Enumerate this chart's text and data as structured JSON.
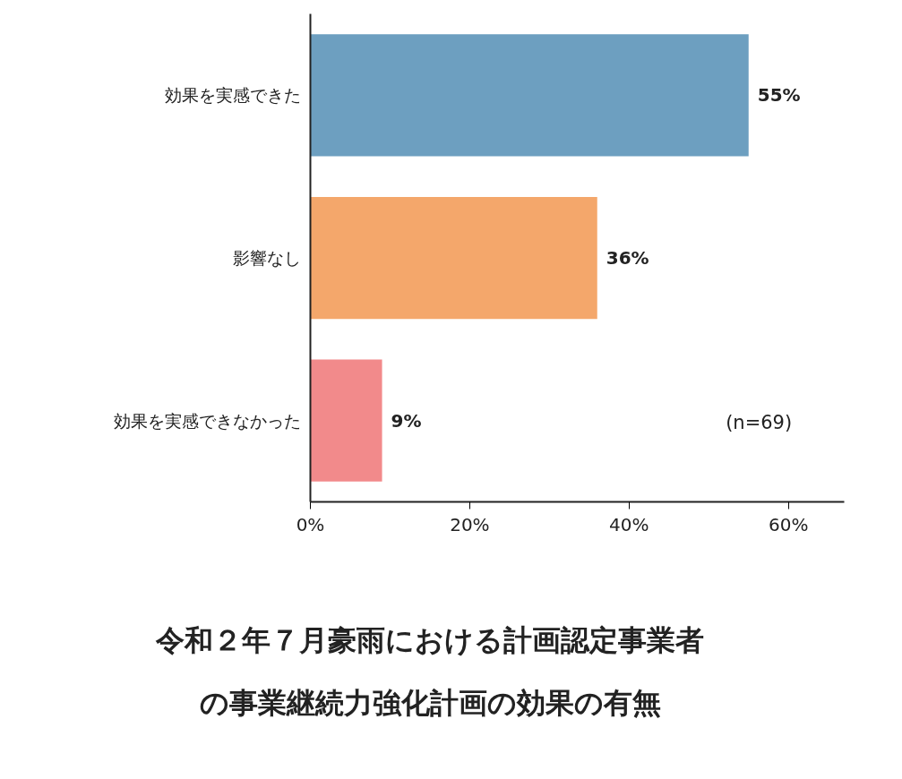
{
  "chart_data": {
    "type": "bar",
    "orientation": "horizontal",
    "title": "令和２年７月豪雨における計画認定事業者の事業継続力強化計画の効果の有無",
    "categories": [
      "効果を実感できた",
      "影響なし",
      "効果を実感できなかった"
    ],
    "values": [
      55,
      36,
      9
    ],
    "colors": [
      "#6d9fc0",
      "#f4a76b",
      "#f28a8b"
    ],
    "value_labels": [
      "55%",
      "36%",
      "9%"
    ],
    "xlim": [
      0,
      67
    ],
    "xticks": [
      {
        "value": 0,
        "label": "0%"
      },
      {
        "value": 20,
        "label": "20%"
      },
      {
        "value": 40,
        "label": "40%"
      },
      {
        "value": 60,
        "label": "60%"
      }
    ],
    "annotations": [
      "(n=69)"
    ],
    "grid": false
  }
}
